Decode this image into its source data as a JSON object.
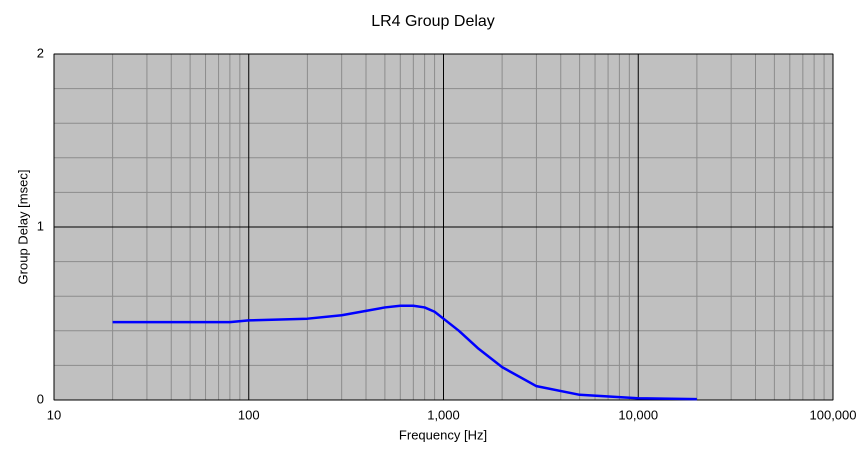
{
  "chart_data": {
    "type": "line",
    "title": "LR4 Group Delay",
    "x_label": "Frequency [Hz]",
    "y_label": "Group Delay [msec]",
    "x": [
      20,
      50,
      80,
      100,
      200,
      300,
      400,
      500,
      600,
      700,
      800,
      900,
      1000,
      1200,
      1500,
      2000,
      3000,
      5000,
      10000,
      20000
    ],
    "series": [
      {
        "name": "Group Delay",
        "color": "#0000ff",
        "values": [
          0.45,
          0.45,
          0.45,
          0.46,
          0.47,
          0.49,
          0.515,
          0.535,
          0.545,
          0.545,
          0.535,
          0.51,
          0.47,
          0.4,
          0.3,
          0.19,
          0.08,
          0.03,
          0.01,
          0.005
        ]
      }
    ],
    "xscale": "log",
    "xlim": [
      10,
      100000
    ],
    "xticks": [
      10,
      100,
      {
        "value": 1000,
        "label": "1,000"
      },
      {
        "value": 10000,
        "label": "10,000"
      },
      {
        "value": 100000,
        "label": "100,000"
      }
    ],
    "ylim": [
      0,
      2
    ],
    "yticks": [
      0,
      1,
      2
    ],
    "y_minor_step": 0.2,
    "grid": true,
    "minor_grid": true,
    "background": "#c0c0c0"
  }
}
